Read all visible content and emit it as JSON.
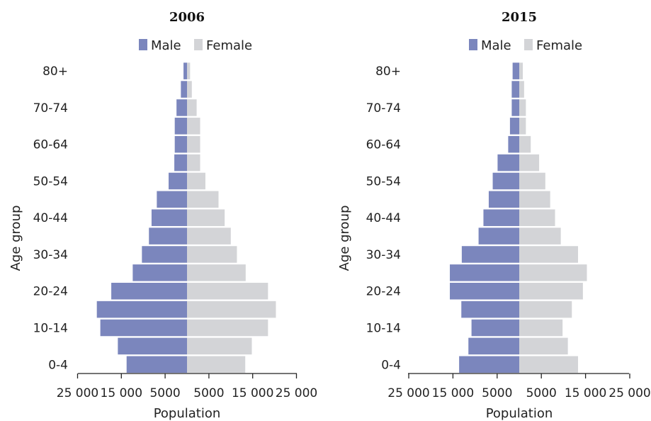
{
  "colors": {
    "male": "#7b86bd",
    "female": "#d3d4d7",
    "axis": "#222222"
  },
  "chart_data": [
    {
      "type": "bar",
      "title": "2006",
      "legend": [
        "Male",
        "Female"
      ],
      "ylabel": "Age group",
      "xlabel": "Population",
      "categories": [
        "0-4",
        "5-9",
        "10-14",
        "15-19",
        "20-24",
        "25-29",
        "30-34",
        "35-39",
        "40-44",
        "45-49",
        "50-54",
        "55-59",
        "60-64",
        "65-69",
        "70-74",
        "75-79",
        "80+"
      ],
      "y_tick_labels": [
        "0-4",
        "10-14",
        "20-24",
        "30-34",
        "40-44",
        "50-54",
        "60-64",
        "70-74",
        "80+"
      ],
      "x_tick_labels": [
        "25 000",
        "15 000",
        "5000",
        "5000",
        "15 000",
        "25 000"
      ],
      "xlim": [
        -25000,
        25000
      ],
      "series": [
        {
          "name": "Male",
          "values": [
            -13800,
            -15800,
            -19800,
            -20600,
            -17300,
            -12400,
            -10300,
            -8700,
            -8100,
            -6900,
            -4200,
            -2900,
            -2800,
            -2800,
            -2400,
            -1400,
            -800
          ]
        },
        {
          "name": "Female",
          "values": [
            13300,
            14800,
            18500,
            20300,
            18500,
            13400,
            11400,
            10000,
            8600,
            7200,
            4200,
            3000,
            3000,
            3000,
            2200,
            1100,
            700
          ]
        }
      ]
    },
    {
      "type": "bar",
      "title": "2015",
      "legend": [
        "Male",
        "Female"
      ],
      "ylabel": "Age group",
      "xlabel": "Population",
      "categories": [
        "0-4",
        "5-9",
        "10-14",
        "15-19",
        "20-24",
        "25-29",
        "30-34",
        "35-39",
        "40-44",
        "45-49",
        "50-54",
        "55-59",
        "60-64",
        "65-69",
        "70-74",
        "75-79",
        "80+"
      ],
      "y_tick_labels": [
        "0-4",
        "10-14",
        "20-24",
        "30-34",
        "40-44",
        "50-54",
        "60-64",
        "70-74",
        "80+"
      ],
      "x_tick_labels": [
        "25 000",
        "15 000",
        "5000",
        "5000",
        "15 000",
        "25 000"
      ],
      "xlim": [
        -25000,
        25000
      ],
      "series": [
        {
          "name": "Male",
          "values": [
            -13600,
            -11500,
            -10800,
            -13100,
            -15700,
            -15700,
            -13000,
            -9200,
            -8100,
            -6900,
            -6000,
            -4900,
            -2500,
            -2100,
            -1700,
            -1700,
            -1500
          ]
        },
        {
          "name": "Female",
          "values": [
            13300,
            11000,
            9800,
            11900,
            14400,
            15300,
            13300,
            9400,
            8100,
            7000,
            5900,
            4500,
            2600,
            1500,
            1500,
            1100,
            800
          ]
        }
      ]
    }
  ]
}
